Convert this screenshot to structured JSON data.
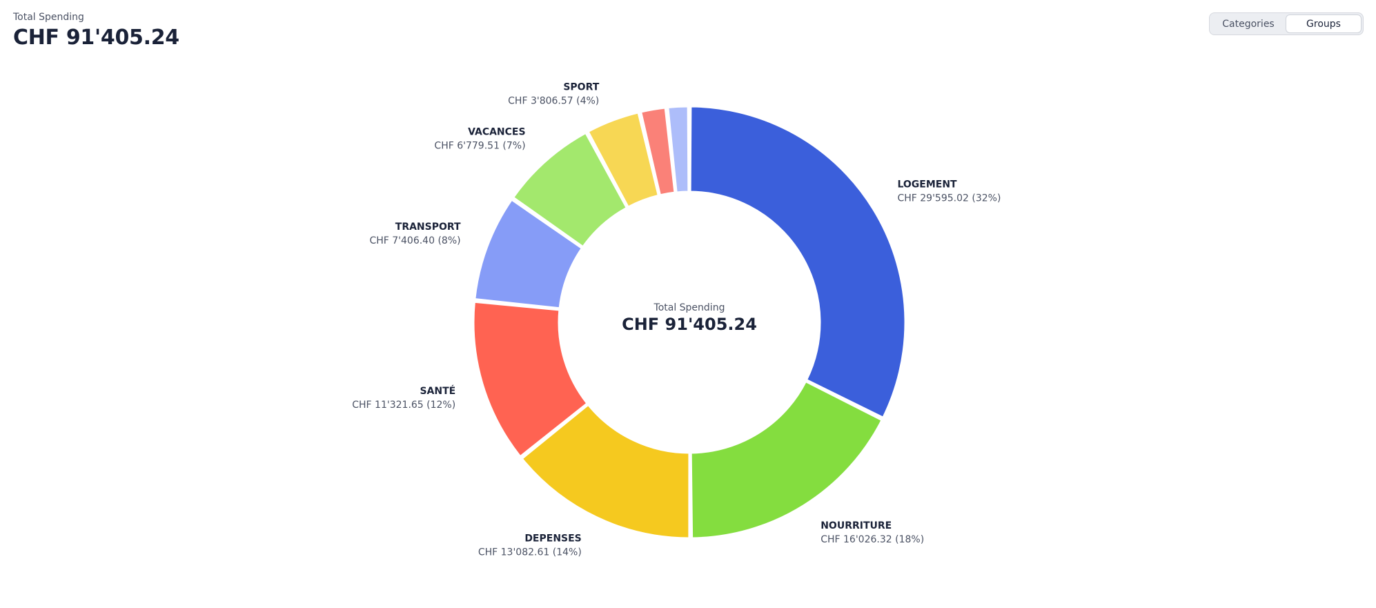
{
  "header": {
    "label": "Total Spending",
    "value": "CHF 91'405.24"
  },
  "toggle": {
    "options": [
      "Categories",
      "Groups"
    ],
    "active_index": 1
  },
  "chart_data": {
    "type": "pie",
    "center": {
      "label": "Total Spending",
      "value": "CHF 91'405.24"
    },
    "total": 91405.24,
    "slices": [
      {
        "name": "LOGEMENT",
        "value": 29595.02,
        "value_label": "CHF 29'595.02 (32%)",
        "color": "#3b5fdb"
      },
      {
        "name": "NOURRITURE",
        "value": 16026.32,
        "value_label": "CHF 16'026.32 (18%)",
        "color": "#84dd3f"
      },
      {
        "name": "DEPENSES",
        "value": 13082.61,
        "value_label": "CHF 13'082.61 (14%)",
        "color": "#f5c91f"
      },
      {
        "name": "SANTÉ",
        "value": 11321.65,
        "value_label": "CHF 11'321.65 (12%)",
        "color": "#ff6352"
      },
      {
        "name": "TRANSPORT",
        "value": 7406.4,
        "value_label": "CHF 7'406.40 (8%)",
        "color": "#869cf7"
      },
      {
        "name": "VACANCES",
        "value": 6779.51,
        "value_label": "CHF 6'779.51 (7%)",
        "color": "#a3e86d"
      },
      {
        "name": "SPORT",
        "value": 3806.57,
        "value_label": "CHF 3'806.57 (4%)",
        "color": "#f7d754"
      },
      {
        "name": "",
        "value": 1850.0,
        "value_label": "",
        "color": "#fa8178"
      },
      {
        "name": "",
        "value": 1537.16,
        "value_label": "",
        "color": "#adbdfa"
      }
    ]
  }
}
